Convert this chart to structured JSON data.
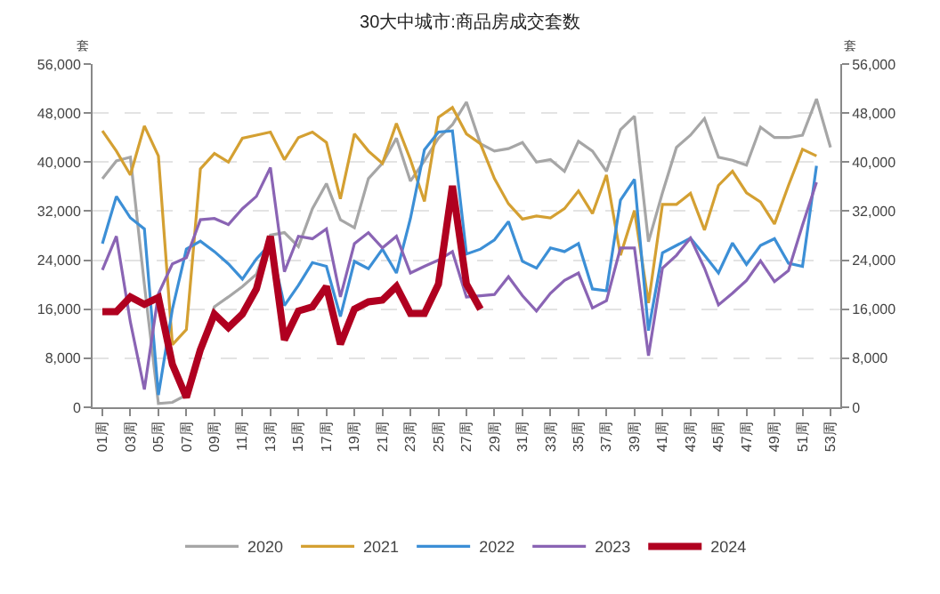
{
  "chart_data": {
    "type": "line",
    "title": "30大中城市:商品房成交套数",
    "ylabel": "套",
    "y2label": "套",
    "categories": [
      "01周",
      null,
      "03周",
      null,
      "05周",
      null,
      "07周",
      null,
      "09周",
      null,
      "11周",
      null,
      "13周",
      null,
      "15周",
      null,
      "17周",
      null,
      "19周",
      null,
      "21周",
      null,
      "23周",
      null,
      "25周",
      null,
      "27周",
      null,
      "29周",
      null,
      "31周",
      null,
      "33周",
      null,
      "35周",
      null,
      "37周",
      null,
      "39周",
      null,
      "41周",
      null,
      "43周",
      null,
      "45周",
      null,
      "47周",
      null,
      "49周",
      null,
      "51周",
      null,
      "53周"
    ],
    "ylim": [
      0,
      56000
    ],
    "yticks": [
      0,
      {
        "value": 8000,
        "label": "8,000"
      },
      {
        "value": 16000,
        "label": "16,000"
      },
      {
        "value": 24000,
        "label": "24,000"
      },
      {
        "value": 32000,
        "label": "32,000"
      },
      {
        "value": 40000,
        "label": "40,000"
      },
      {
        "value": 48000,
        "label": "48,000"
      },
      {
        "value": 56000,
        "label": "56,000"
      }
    ],
    "y2lim": [
      0,
      56000
    ],
    "y2ticks": [
      0,
      {
        "value": 8000,
        "label": "8,000"
      },
      {
        "value": 16000,
        "label": "16,000"
      },
      {
        "value": 24000,
        "label": "24,000"
      },
      {
        "value": 32000,
        "label": "32,000"
      },
      {
        "value": 40000,
        "label": "40,000"
      },
      {
        "value": 48000,
        "label": "48,000"
      },
      {
        "value": 56000,
        "label": "56,000"
      }
    ],
    "grid": "y",
    "legend": "bottom",
    "marker": "none",
    "line_style": "solid",
    "series": [
      {
        "name": "2020",
        "color": "#a6a6a6",
        "values": [
          37300,
          40200,
          40800,
          20000,
          600,
          800,
          2000,
          9400,
          16400,
          18000,
          19700,
          21700,
          28100,
          28500,
          26200,
          32400,
          36500,
          30600,
          29300,
          37300,
          39800,
          43900,
          36900,
          40200,
          43900,
          46100,
          49800,
          43000,
          41800,
          42200,
          43200,
          40000,
          40400,
          38500,
          43400,
          41800,
          38500,
          45300,
          47500,
          27000,
          35000,
          42400,
          44400,
          47100,
          40800,
          40300,
          39500,
          45700,
          44000,
          44000,
          44400,
          50300,
          42400
        ]
      },
      {
        "name": "2021",
        "color": "#d4a032",
        "values": [
          45100,
          41800,
          37900,
          45900,
          41000,
          10200,
          12700,
          38900,
          41400,
          40000,
          43900,
          44400,
          44900,
          40400,
          44000,
          44900,
          43200,
          34000,
          44600,
          41800,
          39800,
          46300,
          40400,
          33600,
          47300,
          48900,
          44600,
          43000,
          37300,
          33200,
          30700,
          31200,
          30900,
          32400,
          35300,
          31600,
          37900,
          24800,
          32100,
          17000,
          33100,
          33100,
          34900,
          28900,
          36200,
          38500,
          35000,
          33500,
          29900,
          36200,
          42100,
          41000,
          null
        ]
      },
      {
        "name": "2022",
        "color": "#3c8fd6",
        "values": [
          26700,
          34400,
          30900,
          29100,
          2000,
          16000,
          25800,
          27100,
          25400,
          23400,
          20900,
          24200,
          26700,
          16600,
          19900,
          23600,
          23000,
          14800,
          23800,
          22600,
          25800,
          21900,
          30800,
          42000,
          44900,
          45100,
          25000,
          25800,
          27300,
          30300,
          23800,
          22700,
          26000,
          25400,
          26700,
          19300,
          19000,
          33800,
          37200,
          12500,
          25200,
          26400,
          27600,
          24800,
          21900,
          26800,
          23300,
          26400,
          27500,
          23500,
          23000,
          39400,
          null
        ]
      },
      {
        "name": "2023",
        "color": "#8a64b4",
        "values": [
          22400,
          27900,
          13900,
          2900,
          18500,
          23400,
          24400,
          30600,
          30800,
          29800,
          32400,
          34400,
          39100,
          22100,
          27900,
          27500,
          29100,
          18000,
          26700,
          28500,
          26000,
          27900,
          21900,
          23000,
          24000,
          25400,
          18000,
          18200,
          18400,
          21300,
          18200,
          15700,
          18600,
          20700,
          21900,
          16200,
          17400,
          26000,
          26000,
          8400,
          22700,
          24800,
          27600,
          22700,
          16700,
          18600,
          20700,
          23900,
          20500,
          22300,
          29700,
          36700,
          null
        ]
      },
      {
        "name": "2024",
        "color": "#b00020",
        "values": [
          15600,
          15600,
          18000,
          16800,
          17900,
          7000,
          1600,
          9400,
          15200,
          13000,
          15200,
          19300,
          27900,
          11000,
          15700,
          16400,
          19700,
          10300,
          16000,
          17200,
          17500,
          19700,
          15300,
          15300,
          20100,
          36100,
          20100,
          16000,
          null,
          null,
          null,
          null,
          null,
          null,
          null,
          null,
          null,
          null,
          null,
          null,
          null,
          null,
          null,
          null,
          null,
          null,
          null,
          null,
          null,
          null,
          null,
          null,
          null
        ]
      }
    ]
  }
}
